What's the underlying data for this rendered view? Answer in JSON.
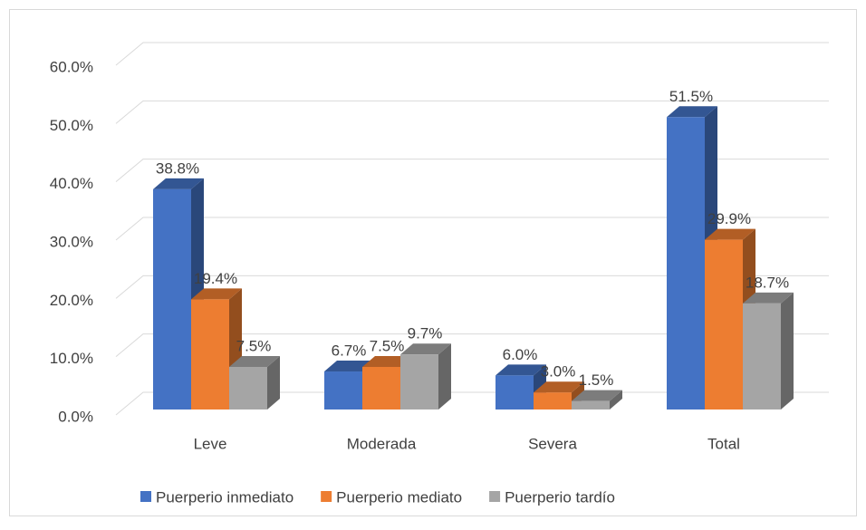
{
  "chart_data": {
    "type": "bar3d",
    "categories": [
      "Leve",
      "Moderada",
      "Severa",
      "Total"
    ],
    "series": [
      {
        "name": "Puerperio inmediato",
        "color": "#4472c4",
        "values": [
          38.8,
          6.7,
          6.0,
          51.5
        ],
        "value_labels": [
          "38.8%",
          "6.7%",
          "6.0%",
          "51.5%"
        ]
      },
      {
        "name": "Puerperio mediato",
        "color": "#ed7d31",
        "values": [
          19.4,
          7.5,
          3.0,
          29.9
        ],
        "value_labels": [
          "19.4%",
          "7.5%",
          "3.0%",
          "29.9%"
        ]
      },
      {
        "name": "Puerperio tardío",
        "color": "#a5a5a5",
        "values": [
          7.5,
          9.7,
          1.5,
          18.7
        ],
        "value_labels": [
          "7.5%",
          "9.7%",
          "1.5%",
          "18.7%"
        ]
      }
    ],
    "ylim": [
      0,
      60
    ],
    "yticks": [
      {
        "value": 0,
        "label": "0.0%"
      },
      {
        "value": 10,
        "label": "10.0%"
      },
      {
        "value": 20,
        "label": "20.0%"
      },
      {
        "value": 30,
        "label": "30.0%"
      },
      {
        "value": 40,
        "label": "40.0%"
      },
      {
        "value": 50,
        "label": "50.0%"
      },
      {
        "value": 60,
        "label": "60.0%"
      }
    ],
    "grid": true,
    "legend": "bottom"
  }
}
